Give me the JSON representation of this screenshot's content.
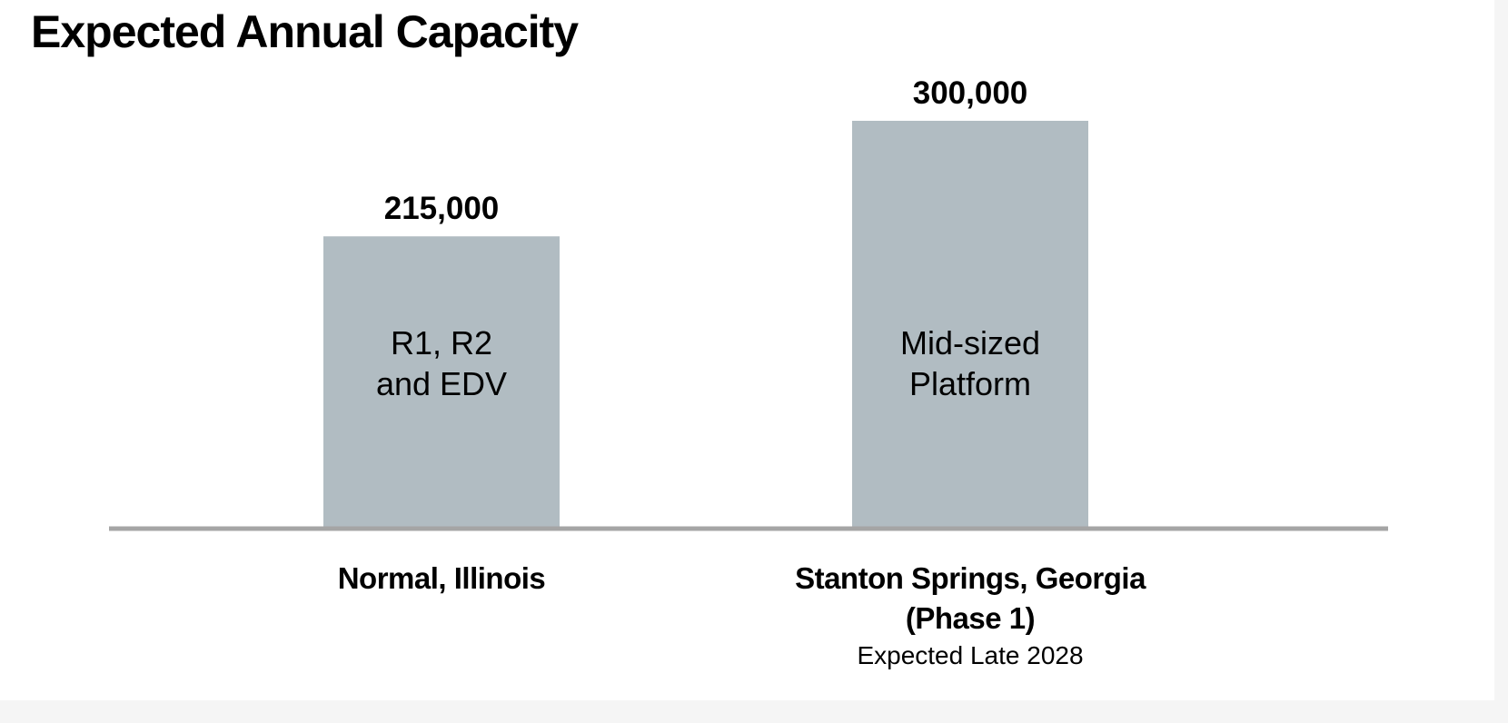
{
  "chart_data": {
    "type": "bar",
    "title": "Expected Annual Capacity",
    "xlabel": "",
    "ylabel": "",
    "ylim": [
      0,
      300000
    ],
    "grid": false,
    "legend": "none",
    "bar_color": "#b1bcc2",
    "axis_color": "#a5a5a5",
    "categories": [
      {
        "lines": [
          "Normal, Illinois"
        ],
        "note": ""
      },
      {
        "lines": [
          "Stanton Springs, Georgia",
          "(Phase 1)"
        ],
        "note": "Expected Late 2028"
      }
    ],
    "values": [
      215000,
      300000
    ],
    "value_labels": [
      "215,000",
      "300,000"
    ],
    "bar_labels": [
      [
        "R1, R2",
        "and EDV"
      ],
      [
        "Mid-sized",
        "Platform"
      ]
    ]
  }
}
